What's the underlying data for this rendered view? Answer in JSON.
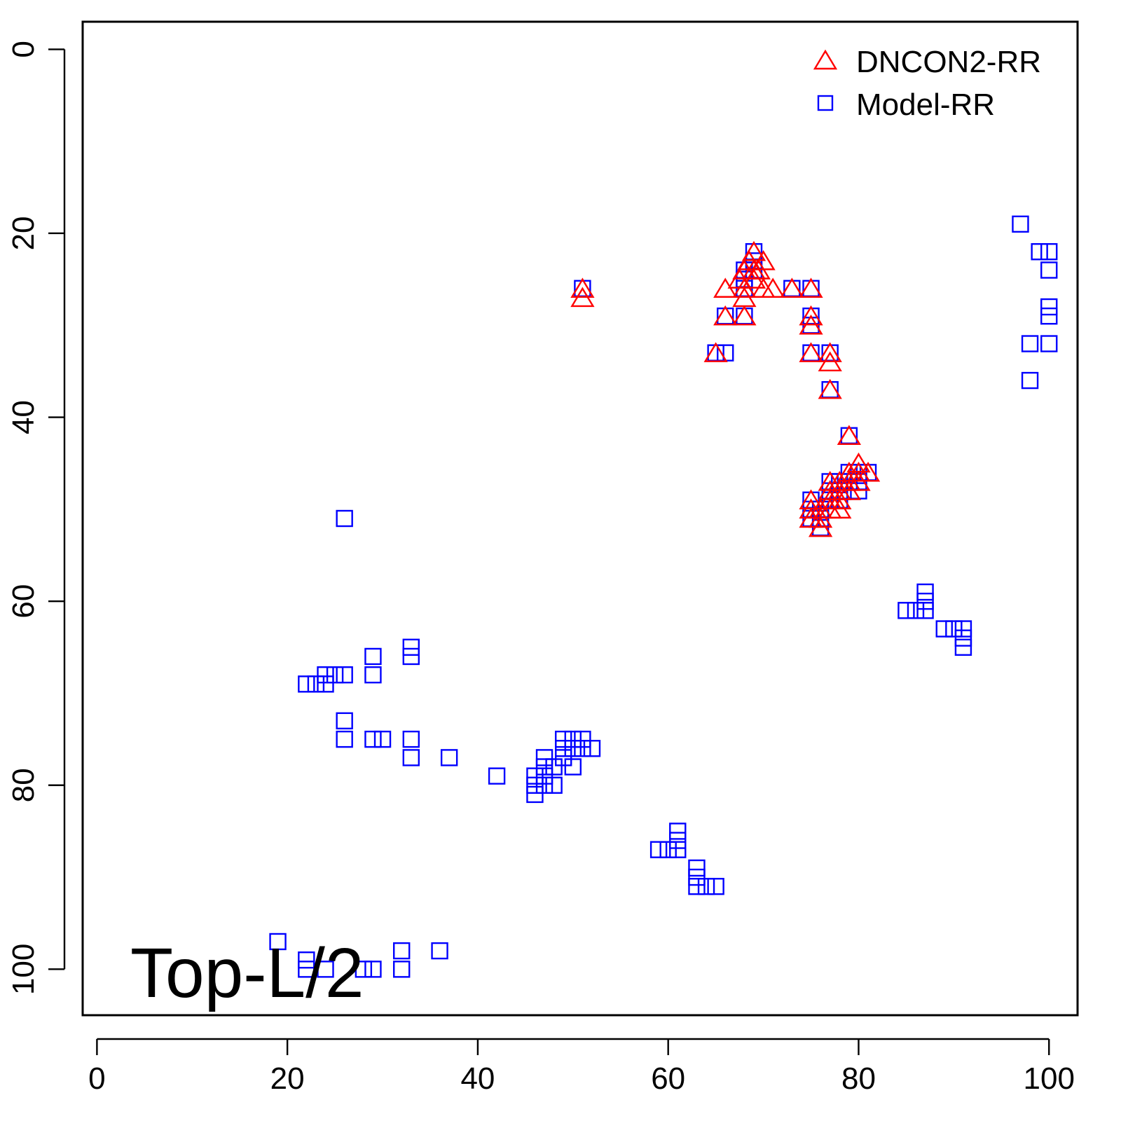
{
  "chart_data": {
    "type": "scatter",
    "title": "",
    "xlabel": "",
    "ylabel": "",
    "xlim": [
      -1.5,
      103
    ],
    "ylim": [
      105,
      -3
    ],
    "y_reversed": true,
    "x_ticks": [
      0,
      20,
      40,
      60,
      80,
      100
    ],
    "y_ticks": [
      0,
      20,
      40,
      60,
      80,
      100
    ],
    "grid": false,
    "legend_position": "top-right",
    "annotation": "Top-L/2",
    "series": [
      {
        "name": "DNCON2-RR",
        "marker": "triangle",
        "color": "#ff0000",
        "points": [
          [
            51,
            26
          ],
          [
            51,
            27
          ],
          [
            65,
            33
          ],
          [
            66,
            26
          ],
          [
            66,
            29
          ],
          [
            67.5,
            25
          ],
          [
            68,
            24
          ],
          [
            68,
            26
          ],
          [
            68,
            27
          ],
          [
            68,
            29
          ],
          [
            68.5,
            23
          ],
          [
            69,
            22
          ],
          [
            69,
            24
          ],
          [
            69,
            25
          ],
          [
            69.5,
            24
          ],
          [
            70,
            26
          ],
          [
            70,
            23
          ],
          [
            71,
            26
          ],
          [
            73,
            26
          ],
          [
            75,
            26
          ],
          [
            75,
            29
          ],
          [
            75,
            30
          ],
          [
            75,
            33
          ],
          [
            77,
            33
          ],
          [
            77,
            34
          ],
          [
            77,
            37
          ],
          [
            79,
            42
          ],
          [
            75,
            49
          ],
          [
            75,
            50
          ],
          [
            75,
            51
          ],
          [
            76,
            50
          ],
          [
            76,
            51
          ],
          [
            76,
            52
          ],
          [
            77,
            47
          ],
          [
            77,
            48
          ],
          [
            77,
            49
          ],
          [
            77,
            50
          ],
          [
            78,
            47
          ],
          [
            78,
            48
          ],
          [
            78,
            49
          ],
          [
            78,
            50
          ],
          [
            79,
            46
          ],
          [
            79,
            47
          ],
          [
            79,
            48
          ],
          [
            80,
            45
          ],
          [
            80,
            46
          ],
          [
            80,
            47
          ],
          [
            81,
            46
          ]
        ]
      },
      {
        "name": "Model-RR",
        "marker": "square",
        "color": "#0000ff",
        "points": [
          [
            51,
            26
          ],
          [
            65,
            33
          ],
          [
            66,
            29
          ],
          [
            66,
            33
          ],
          [
            68,
            24
          ],
          [
            68,
            25
          ],
          [
            68,
            26
          ],
          [
            68,
            29
          ],
          [
            69,
            22
          ],
          [
            69,
            23
          ],
          [
            69,
            24
          ],
          [
            73,
            26
          ],
          [
            75,
            26
          ],
          [
            75,
            29
          ],
          [
            75,
            30
          ],
          [
            75,
            33
          ],
          [
            77,
            33
          ],
          [
            77,
            37
          ],
          [
            79,
            42
          ],
          [
            75,
            49
          ],
          [
            75,
            50
          ],
          [
            75,
            51
          ],
          [
            76,
            50
          ],
          [
            76,
            51
          ],
          [
            76,
            52
          ],
          [
            77,
            47
          ],
          [
            77,
            48
          ],
          [
            77,
            49
          ],
          [
            78,
            47
          ],
          [
            78,
            48
          ],
          [
            78,
            49
          ],
          [
            79,
            46
          ],
          [
            79,
            47
          ],
          [
            80,
            46
          ],
          [
            80,
            47
          ],
          [
            80,
            48
          ],
          [
            81,
            46
          ],
          [
            97,
            19
          ],
          [
            98,
            32
          ],
          [
            98,
            36
          ],
          [
            99,
            22
          ],
          [
            100,
            22
          ],
          [
            100,
            24
          ],
          [
            100,
            28
          ],
          [
            100,
            29
          ],
          [
            100,
            32
          ],
          [
            26,
            51
          ],
          [
            85,
            61
          ],
          [
            86,
            61
          ],
          [
            87,
            59
          ],
          [
            87,
            60
          ],
          [
            87,
            61
          ],
          [
            89,
            63
          ],
          [
            90,
            63
          ],
          [
            91,
            63
          ],
          [
            91,
            64
          ],
          [
            91,
            65
          ],
          [
            22,
            69
          ],
          [
            23,
            69
          ],
          [
            24,
            68
          ],
          [
            24,
            69
          ],
          [
            25,
            68
          ],
          [
            26,
            68
          ],
          [
            29,
            66
          ],
          [
            29,
            68
          ],
          [
            33,
            65
          ],
          [
            33,
            66
          ],
          [
            26,
            73
          ],
          [
            26,
            75
          ],
          [
            29,
            75
          ],
          [
            30,
            75
          ],
          [
            33,
            75
          ],
          [
            33,
            77
          ],
          [
            37,
            77
          ],
          [
            42,
            79
          ],
          [
            46,
            79
          ],
          [
            46,
            80
          ],
          [
            46,
            81
          ],
          [
            47,
            77
          ],
          [
            47,
            78
          ],
          [
            47,
            79
          ],
          [
            47,
            80
          ],
          [
            48,
            78
          ],
          [
            48,
            80
          ],
          [
            49,
            75
          ],
          [
            49,
            76
          ],
          [
            49,
            77
          ],
          [
            50,
            75
          ],
          [
            50,
            76
          ],
          [
            50,
            78
          ],
          [
            51,
            75
          ],
          [
            51,
            76
          ],
          [
            52,
            76
          ],
          [
            59,
            87
          ],
          [
            60,
            87
          ],
          [
            61,
            85
          ],
          [
            61,
            86
          ],
          [
            61,
            87
          ],
          [
            63,
            89
          ],
          [
            63,
            90
          ],
          [
            63,
            91
          ],
          [
            64,
            91
          ],
          [
            65,
            91
          ],
          [
            19,
            97
          ],
          [
            22,
            99
          ],
          [
            22,
            100
          ],
          [
            24,
            100
          ],
          [
            28,
            100
          ],
          [
            29,
            100
          ],
          [
            32,
            98
          ],
          [
            32,
            100
          ],
          [
            36,
            98
          ]
        ]
      }
    ]
  }
}
